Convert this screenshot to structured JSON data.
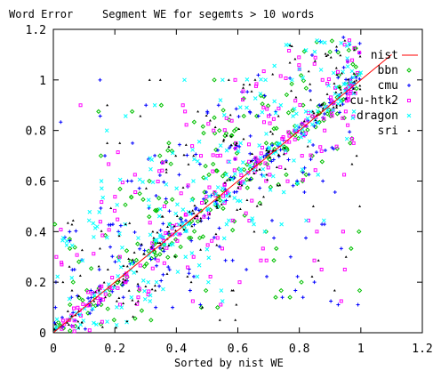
{
  "chart_data": {
    "type": "scatter",
    "title": "Segment WE for segemts > 10 words",
    "ylabel": "Word Error",
    "xlabel": "Sorted by nist WE",
    "xlim": [
      0,
      1.2
    ],
    "ylim": [
      0,
      1.2
    ],
    "x_ticks": [
      "0",
      "0.2",
      "0.4",
      "0.6",
      "0.8",
      "1",
      "1.2"
    ],
    "y_ticks": [
      "0",
      "0.2",
      "0.4",
      "0.6",
      "0.8",
      "1",
      "1.2"
    ],
    "legend_position": "top-right",
    "grid": false,
    "series": [
      {
        "name": "nist",
        "kind": "line",
        "color": "#ff0000",
        "marker": "line"
      },
      {
        "name": "bbn",
        "kind": "points",
        "color": "#00c000",
        "marker": "diamond"
      },
      {
        "name": "cmu",
        "kind": "points",
        "color": "#0000ff",
        "marker": "plus"
      },
      {
        "name": "cu-htk2",
        "kind": "points",
        "color": "#ff00ff",
        "marker": "square"
      },
      {
        "name": "dragon",
        "kind": "points",
        "color": "#00ffff",
        "marker": "cross"
      },
      {
        "name": "sri",
        "kind": "points",
        "color": "#000000",
        "marker": "triangle"
      }
    ],
    "nist_line": {
      "x": [
        0,
        1.1
      ],
      "y": [
        0,
        1.1
      ]
    },
    "scatter_note": "dense cloud of per-segment word error values, mostly above the diagonal, concentrated in x 0-1, y 0-1"
  }
}
